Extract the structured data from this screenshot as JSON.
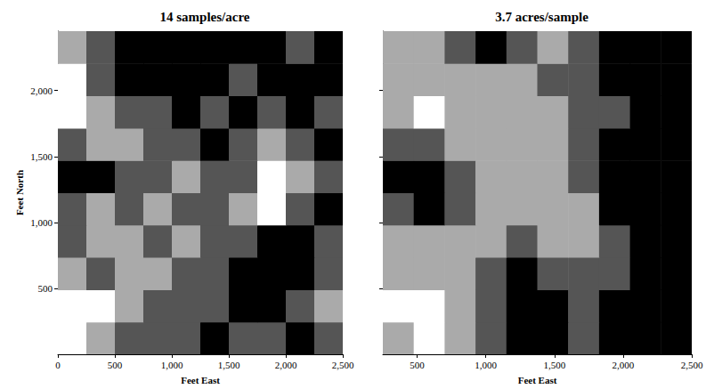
{
  "chart_data": [
    {
      "type": "heatmap",
      "title": "14 samples/acre",
      "x_label": "Feet East",
      "y_label": "Feet North",
      "xlim": [
        0,
        2500
      ],
      "ylim": [
        0,
        2450
      ],
      "xticks": [
        0,
        500,
        1000,
        1500,
        2000,
        2500
      ],
      "yticks": [
        500,
        1000,
        1500,
        2000
      ],
      "tick_labels": true,
      "x_bins": [
        0,
        250,
        500,
        750,
        1000,
        1250,
        1500,
        1750,
        2000,
        2250,
        2500
      ],
      "y_bins": [
        0,
        245,
        490,
        735,
        980,
        1225,
        1470,
        1715,
        1960,
        2205,
        2450
      ],
      "zlim": [
        0,
        3
      ],
      "cells": [
        [
          3,
          2,
          1,
          1,
          1,
          0,
          1,
          1,
          0,
          1
        ],
        [
          3,
          3,
          2,
          1,
          1,
          1,
          0,
          0,
          1,
          2
        ],
        [
          2,
          1,
          2,
          2,
          1,
          1,
          0,
          0,
          0,
          1
        ],
        [
          1,
          2,
          2,
          1,
          2,
          1,
          1,
          0,
          0,
          1
        ],
        [
          1,
          2,
          1,
          2,
          1,
          1,
          2,
          3,
          1,
          0
        ],
        [
          0,
          0,
          1,
          1,
          2,
          1,
          1,
          3,
          2,
          1
        ],
        [
          1,
          2,
          2,
          1,
          1,
          0,
          1,
          2,
          1,
          0
        ],
        [
          3,
          2,
          1,
          1,
          0,
          1,
          0,
          1,
          0,
          1
        ],
        [
          3,
          1,
          0,
          0,
          0,
          0,
          1,
          0,
          0,
          0
        ],
        [
          2,
          1,
          0,
          0,
          0,
          0,
          0,
          0,
          1,
          0
        ]
      ]
    },
    {
      "type": "heatmap",
      "title": "3.7 acres/sample",
      "x_label": "Feet East",
      "xlim": [
        250,
        2500
      ],
      "ylim": [
        0,
        2450
      ],
      "xticks": [
        500,
        1000,
        1500,
        2000,
        2500
      ],
      "yticks": [
        500,
        1000,
        1500,
        2000
      ],
      "tick_labels": "x",
      "x_bins": [
        250,
        475,
        700,
        925,
        1150,
        1375,
        1600,
        1825,
        2050,
        2275,
        2500
      ],
      "y_bins": [
        0,
        245,
        490,
        735,
        980,
        1225,
        1470,
        1715,
        1960,
        2205,
        2450
      ],
      "zlim": [
        0,
        3
      ],
      "cells": [
        [
          2,
          3,
          2,
          1,
          0,
          0,
          1,
          0,
          0,
          0
        ],
        [
          3,
          3,
          2,
          1,
          0,
          0,
          1,
          0,
          0,
          0
        ],
        [
          2,
          2,
          2,
          1,
          0,
          1,
          1,
          1,
          0,
          0
        ],
        [
          2,
          2,
          2,
          2,
          1,
          2,
          2,
          1,
          0,
          0
        ],
        [
          1,
          0,
          1,
          2,
          2,
          2,
          2,
          0,
          0,
          0
        ],
        [
          0,
          0,
          1,
          2,
          2,
          2,
          1,
          0,
          0,
          0
        ],
        [
          1,
          1,
          2,
          2,
          2,
          2,
          1,
          0,
          0,
          0
        ],
        [
          2,
          3,
          2,
          2,
          2,
          2,
          1,
          1,
          0,
          0
        ],
        [
          2,
          2,
          2,
          2,
          2,
          1,
          1,
          0,
          0,
          0
        ],
        [
          2,
          2,
          1,
          0,
          1,
          2,
          1,
          0,
          0,
          0
        ]
      ]
    }
  ]
}
